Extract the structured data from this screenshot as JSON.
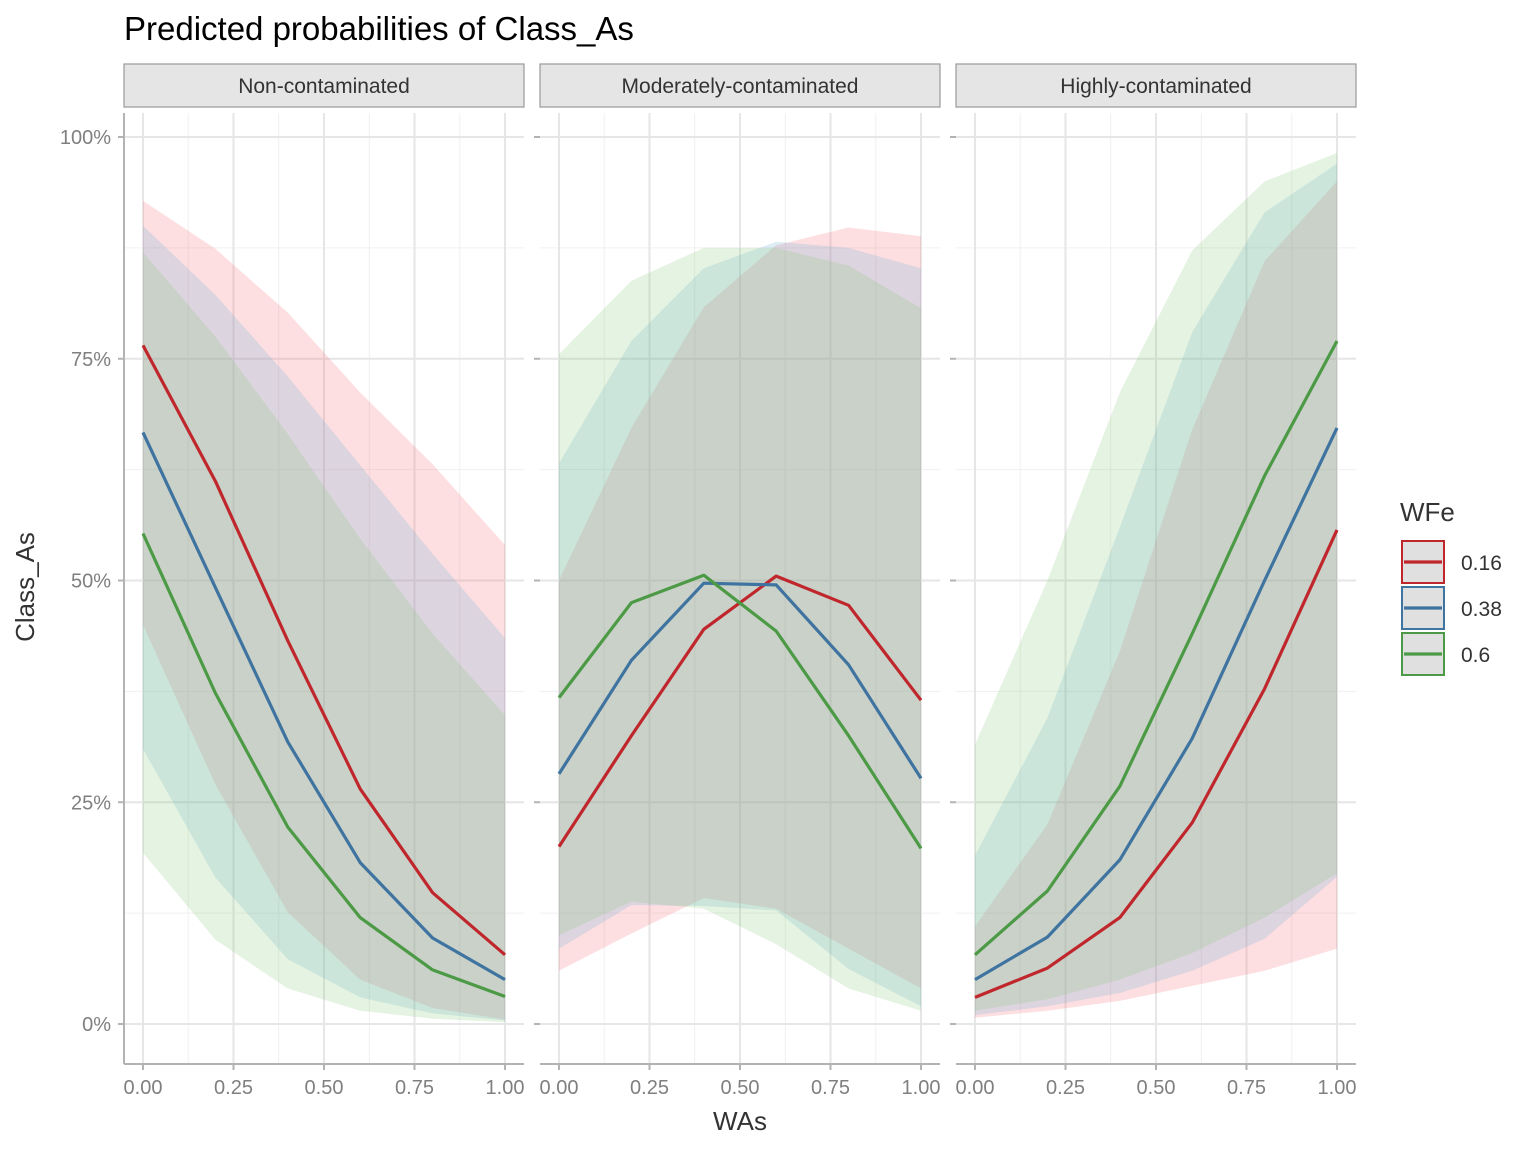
{
  "chart_data": {
    "type": "line",
    "title": "Predicted probabilities of Class_As",
    "xlabel": "WAs",
    "ylabel": "Class_As",
    "xlim": [
      0,
      1
    ],
    "ylim": [
      0,
      1
    ],
    "x_ticks": [
      "0.00",
      "0.25",
      "0.50",
      "0.75",
      "1.00"
    ],
    "x_tick_values": [
      0,
      0.25,
      0.5,
      0.75,
      1
    ],
    "y_ticks": [
      "0%",
      "25%",
      "50%",
      "75%",
      "100%"
    ],
    "y_tick_values": [
      0,
      0.25,
      0.5,
      0.75,
      1
    ],
    "grid": true,
    "legend": {
      "title": "WFe",
      "placement": "right",
      "entries": [
        "0.16",
        "0.38",
        "0.6"
      ]
    },
    "series_colors": [
      "#c0272d",
      "#3f73a0",
      "#4c9a45"
    ],
    "ribbon_fill_colors": [
      "#f46d77",
      "#6aadd5",
      "#87c97a"
    ],
    "x": [
      0,
      0.2,
      0.4,
      0.6,
      0.8,
      1.0
    ],
    "panels": [
      {
        "name": "Non-contaminated",
        "series": [
          {
            "name": "0.16",
            "values": [
              0.765,
              0.612,
              0.432,
              0.265,
              0.148,
              0.078
            ],
            "lower": [
              0.45,
              0.27,
              0.126,
              0.05,
              0.018,
              0.005
            ],
            "upper": [
              0.928,
              0.874,
              0.802,
              0.712,
              0.631,
              0.54
            ]
          },
          {
            "name": "0.38",
            "values": [
              0.667,
              0.492,
              0.318,
              0.182,
              0.097,
              0.05
            ],
            "lower": [
              0.31,
              0.165,
              0.073,
              0.03,
              0.012,
              0.004
            ],
            "upper": [
              0.9,
              0.822,
              0.73,
              0.63,
              0.53,
              0.435
            ]
          },
          {
            "name": "0.6",
            "values": [
              0.553,
              0.373,
              0.222,
              0.12,
              0.061,
              0.031
            ],
            "lower": [
              0.193,
              0.095,
              0.04,
              0.015,
              0.006,
              0.002
            ],
            "upper": [
              0.87,
              0.775,
              0.665,
              0.547,
              0.44,
              0.348
            ]
          }
        ]
      },
      {
        "name": "Moderately-contaminated",
        "series": [
          {
            "name": "0.16",
            "values": [
              0.2,
              0.325,
              0.445,
              0.505,
              0.472,
              0.365
            ],
            "lower": [
              0.06,
              0.102,
              0.142,
              0.13,
              0.085,
              0.04
            ],
            "upper": [
              0.5,
              0.672,
              0.808,
              0.878,
              0.898,
              0.888
            ]
          },
          {
            "name": "0.38",
            "values": [
              0.282,
              0.41,
              0.497,
              0.495,
              0.405,
              0.277
            ],
            "lower": [
              0.085,
              0.134,
              0.133,
              0.128,
              0.062,
              0.02
            ],
            "upper": [
              0.632,
              0.77,
              0.852,
              0.882,
              0.875,
              0.852
            ]
          },
          {
            "name": "0.6",
            "values": [
              0.368,
              0.475,
              0.506,
              0.443,
              0.325,
              0.198
            ],
            "lower": [
              0.1,
              0.138,
              0.13,
              0.09,
              0.04,
              0.015
            ],
            "upper": [
              0.755,
              0.838,
              0.875,
              0.875,
              0.855,
              0.807
            ]
          }
        ]
      },
      {
        "name": "Highly-contaminated",
        "series": [
          {
            "name": "0.16",
            "values": [
              0.03,
              0.063,
              0.12,
              0.227,
              0.378,
              0.557
            ],
            "lower": [
              0.007,
              0.015,
              0.026,
              0.043,
              0.06,
              0.085
            ],
            "upper": [
              0.11,
              0.225,
              0.42,
              0.67,
              0.86,
              0.95
            ]
          },
          {
            "name": "0.38",
            "values": [
              0.05,
              0.098,
              0.185,
              0.322,
              0.5,
              0.672
            ],
            "lower": [
              0.01,
              0.02,
              0.035,
              0.06,
              0.096,
              0.166
            ],
            "upper": [
              0.19,
              0.345,
              0.56,
              0.78,
              0.915,
              0.97
            ]
          },
          {
            "name": "0.6",
            "values": [
              0.078,
              0.15,
              0.268,
              0.44,
              0.618,
              0.77
            ],
            "lower": [
              0.015,
              0.028,
              0.05,
              0.08,
              0.12,
              0.17
            ],
            "upper": [
              0.315,
              0.5,
              0.712,
              0.872,
              0.95,
              0.982
            ]
          }
        ]
      }
    ]
  }
}
